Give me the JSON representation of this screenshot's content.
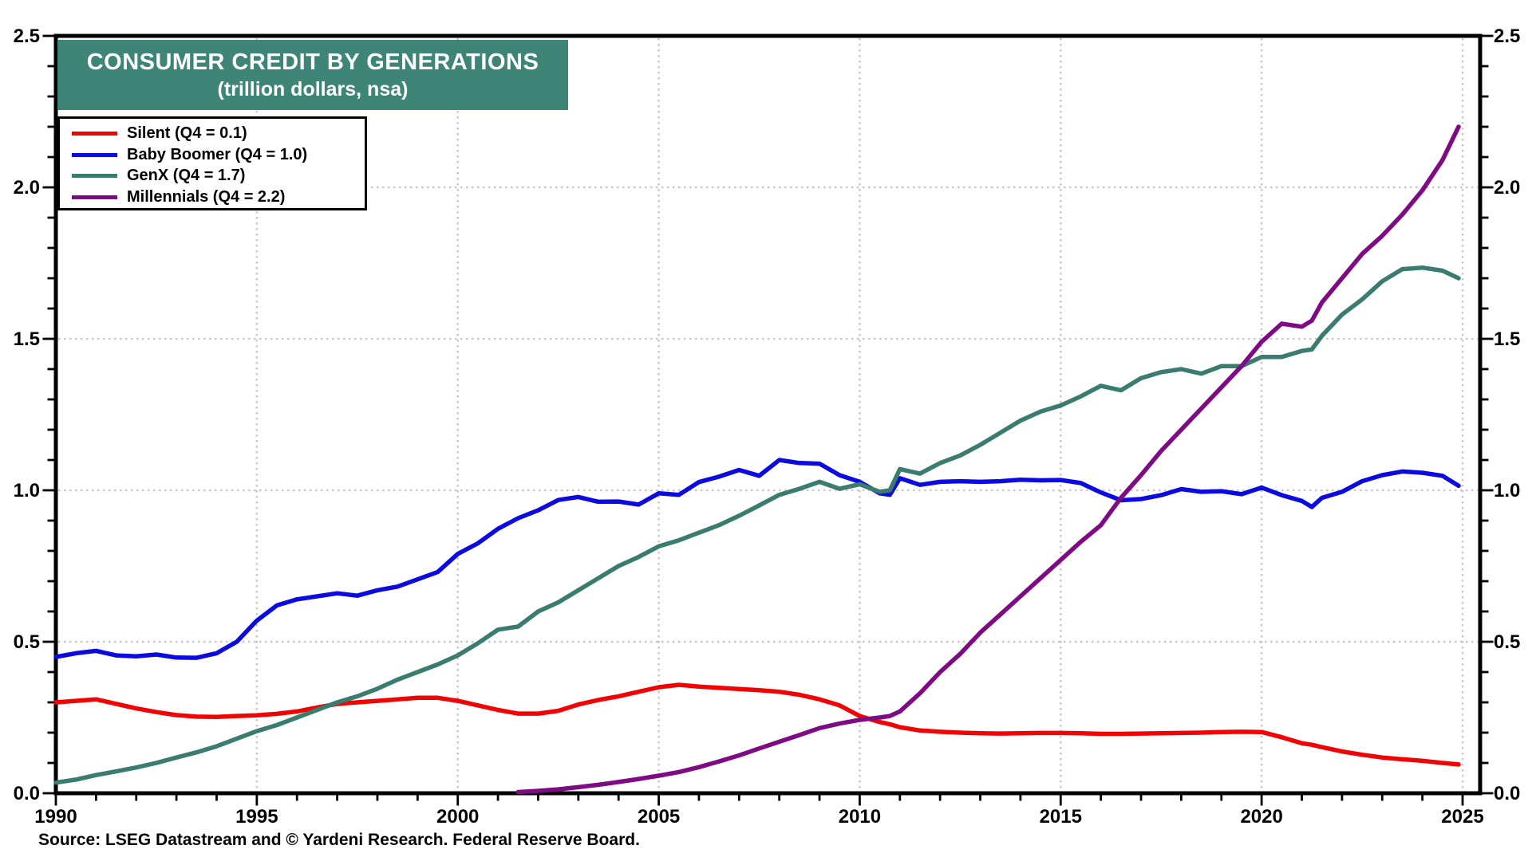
{
  "title": {
    "line1": "CONSUMER CREDIT BY GENERATIONS",
    "line2": "(trillion dollars, nsa)"
  },
  "source": {
    "text": "Source: LSEG Datastream and © Yardeni Research. Federal Reserve Board."
  },
  "colors": {
    "title_bg": "#3E8477",
    "title_text": "#FFFFFF",
    "plot_bg": "#FFFFFF",
    "axis": "#000000",
    "grid_dotted": "#C9C9C9",
    "tick_text": "#000000"
  },
  "chart_data": {
    "type": "line",
    "title": "CONSUMER CREDIT BY GENERATIONS",
    "subtitle": "(trillion dollars, nsa)",
    "units": "trillion dollars",
    "legend_position": "top-left",
    "grid": "dotted",
    "x_axis": {
      "min": 1990,
      "max": 2025,
      "major_ticks": [
        1990,
        1995,
        2000,
        2005,
        2010,
        2015,
        2020,
        2025
      ],
      "tick_labels": [
        "1990",
        "1995",
        "2000",
        "2005",
        "2010",
        "2015",
        "2020",
        "2025"
      ],
      "minor_tick_step": 1,
      "grid_years": [
        1995,
        2000,
        2005,
        2010,
        2015,
        2020,
        2025
      ]
    },
    "y_axis": {
      "min": 0.0,
      "max": 2.5,
      "major_tick_step": 0.5,
      "minor_tick_step": 0.1,
      "tick_values": [
        0.0,
        0.5,
        1.0,
        1.5,
        2.0,
        2.5
      ],
      "tick_labels": [
        "0.0",
        "0.5",
        "1.0",
        "1.5",
        "2.0",
        "2.5"
      ],
      "labels_on_both_sides": true,
      "grid_values": [
        0.5,
        1.0,
        1.5,
        2.0
      ]
    },
    "x": [
      1990,
      1990.5,
      1991,
      1991.5,
      1992,
      1992.5,
      1993,
      1993.5,
      1994,
      1994.5,
      1995,
      1995.5,
      1996,
      1996.5,
      1997,
      1997.5,
      1998,
      1998.5,
      1999,
      1999.5,
      2000,
      2000.5,
      2001,
      2001.5,
      2002,
      2002.5,
      2003,
      2003.5,
      2004,
      2004.5,
      2005,
      2005.5,
      2006,
      2006.5,
      2007,
      2007.5,
      2008,
      2008.5,
      2009,
      2009.5,
      2010,
      2010.5,
      2010.75,
      2011,
      2011.5,
      2012,
      2012.5,
      2013,
      2013.5,
      2014,
      2014.5,
      2015,
      2015.5,
      2016,
      2016.5,
      2017,
      2017.5,
      2018,
      2018.5,
      2019,
      2019.5,
      2020,
      2020.5,
      2021,
      2021.25,
      2021.5,
      2022,
      2022.5,
      2023,
      2023.5,
      2024,
      2024.5,
      2024.9
    ],
    "series": [
      {
        "name": "Silent (Q4 = 0.1)",
        "short_name": "Silent",
        "q4_value": 0.1,
        "color": "#F20303",
        "values": [
          0.3,
          0.305,
          0.31,
          0.295,
          0.28,
          0.268,
          0.258,
          0.253,
          0.252,
          0.255,
          0.257,
          0.262,
          0.27,
          0.283,
          0.295,
          0.3,
          0.305,
          0.31,
          0.315,
          0.315,
          0.305,
          0.29,
          0.275,
          0.263,
          0.263,
          0.272,
          0.293,
          0.308,
          0.32,
          0.335,
          0.35,
          0.358,
          0.352,
          0.348,
          0.344,
          0.34,
          0.335,
          0.325,
          0.31,
          0.29,
          0.255,
          0.235,
          0.228,
          0.218,
          0.207,
          0.203,
          0.2,
          0.198,
          0.197,
          0.198,
          0.199,
          0.199,
          0.198,
          0.196,
          0.196,
          0.197,
          0.198,
          0.199,
          0.2,
          0.202,
          0.203,
          0.202,
          0.185,
          0.165,
          0.16,
          0.152,
          0.138,
          0.127,
          0.118,
          0.112,
          0.107,
          0.1,
          0.095
        ]
      },
      {
        "name": "Baby Boomer (Q4 = 1.0)",
        "short_name": "Baby Boomer",
        "q4_value": 1.0,
        "color": "#0A0AE1",
        "values": [
          0.45,
          0.462,
          0.47,
          0.455,
          0.452,
          0.458,
          0.448,
          0.447,
          0.462,
          0.5,
          0.57,
          0.62,
          0.64,
          0.65,
          0.66,
          0.652,
          0.67,
          0.682,
          0.706,
          0.73,
          0.79,
          0.825,
          0.873,
          0.908,
          0.934,
          0.968,
          0.978,
          0.962,
          0.963,
          0.953,
          0.99,
          0.985,
          1.027,
          1.045,
          1.067,
          1.048,
          1.1,
          1.09,
          1.088,
          1.05,
          1.028,
          0.99,
          0.985,
          1.04,
          1.018,
          1.028,
          1.03,
          1.028,
          1.03,
          1.035,
          1.033,
          1.034,
          1.024,
          0.993,
          0.967,
          0.971,
          0.984,
          1.004,
          0.995,
          0.997,
          0.987,
          1.009,
          0.984,
          0.965,
          0.945,
          0.975,
          0.995,
          1.03,
          1.05,
          1.062,
          1.058,
          1.048,
          1.015
        ]
      },
      {
        "name": "GenX (Q4 = 1.7)",
        "short_name": "GenX",
        "q4_value": 1.7,
        "color": "#3A7C70",
        "values": [
          0.035,
          0.045,
          0.06,
          0.072,
          0.085,
          0.1,
          0.118,
          0.135,
          0.155,
          0.18,
          0.205,
          0.225,
          0.25,
          0.275,
          0.3,
          0.32,
          0.345,
          0.375,
          0.4,
          0.425,
          0.455,
          0.495,
          0.54,
          0.55,
          0.6,
          0.63,
          0.67,
          0.71,
          0.75,
          0.78,
          0.815,
          0.835,
          0.86,
          0.885,
          0.916,
          0.95,
          0.985,
          1.005,
          1.028,
          1.005,
          1.02,
          0.995,
          1.0,
          1.07,
          1.055,
          1.09,
          1.115,
          1.15,
          1.19,
          1.23,
          1.26,
          1.28,
          1.31,
          1.345,
          1.33,
          1.37,
          1.39,
          1.4,
          1.385,
          1.41,
          1.41,
          1.44,
          1.44,
          1.46,
          1.465,
          1.51,
          1.58,
          1.63,
          1.69,
          1.73,
          1.735,
          1.725,
          1.7
        ]
      },
      {
        "name": "Millennials (Q4 = 2.2)",
        "short_name": "Millennials",
        "q4_value": 2.2,
        "color": "#7F0B84",
        "values": [
          null,
          null,
          null,
          null,
          null,
          null,
          null,
          null,
          null,
          null,
          null,
          null,
          null,
          null,
          null,
          null,
          null,
          null,
          null,
          null,
          null,
          null,
          null,
          0.004,
          0.008,
          0.013,
          0.02,
          0.028,
          0.037,
          0.047,
          0.058,
          0.07,
          0.086,
          0.105,
          0.125,
          0.148,
          0.17,
          0.192,
          0.215,
          0.23,
          0.242,
          0.25,
          0.255,
          0.27,
          0.33,
          0.4,
          0.46,
          0.53,
          0.59,
          0.65,
          0.71,
          0.77,
          0.83,
          0.885,
          0.975,
          1.05,
          1.13,
          1.2,
          1.27,
          1.34,
          1.41,
          1.49,
          1.55,
          1.54,
          1.56,
          1.62,
          1.7,
          1.78,
          1.84,
          1.91,
          1.99,
          2.09,
          2.2
        ]
      }
    ]
  }
}
